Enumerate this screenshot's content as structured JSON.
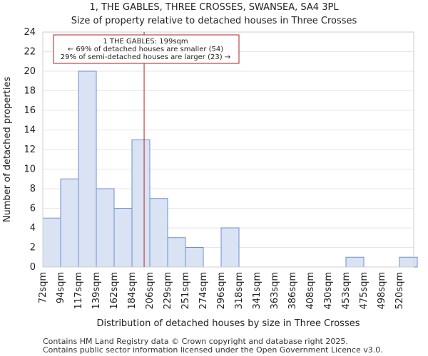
{
  "chart_data": {
    "type": "bar",
    "title": "1, THE GABLES, THREE CROSSES, SWANSEA, SA4 3PL",
    "subtitle": "Size of property relative to detached houses in Three Crosses",
    "xlabel": "Distribution of detached houses by size in Three Crosses",
    "ylabel": "Number of detached properties",
    "categories": [
      "72sqm",
      "94sqm",
      "117sqm",
      "139sqm",
      "162sqm",
      "184sqm",
      "206sqm",
      "229sqm",
      "251sqm",
      "274sqm",
      "296sqm",
      "318sqm",
      "341sqm",
      "363sqm",
      "386sqm",
      "408sqm",
      "430sqm",
      "453sqm",
      "475sqm",
      "498sqm",
      "520sqm"
    ],
    "values": [
      5,
      9,
      20,
      8,
      6,
      13,
      7,
      3,
      2,
      0,
      4,
      0,
      0,
      0,
      0,
      0,
      0,
      1,
      0,
      0,
      1
    ],
    "ylim": [
      0,
      24
    ],
    "yticks": [
      0,
      2,
      4,
      6,
      8,
      10,
      12,
      14,
      16,
      18,
      20,
      22,
      24
    ],
    "grid": true,
    "marker": {
      "value_sqm": 199,
      "color": "#b22222"
    },
    "annotation": {
      "line1": "1 THE GABLES: 199sqm",
      "line2": "← 69% of detached houses are smaller (54)",
      "line3": "29% of semi-detached houses are larger (23) →"
    }
  },
  "footer": {
    "line1": "Contains HM Land Registry data © Crown copyright and database right 2025.",
    "line2": "Contains public sector information licensed under the Open Government Licence v3.0."
  }
}
